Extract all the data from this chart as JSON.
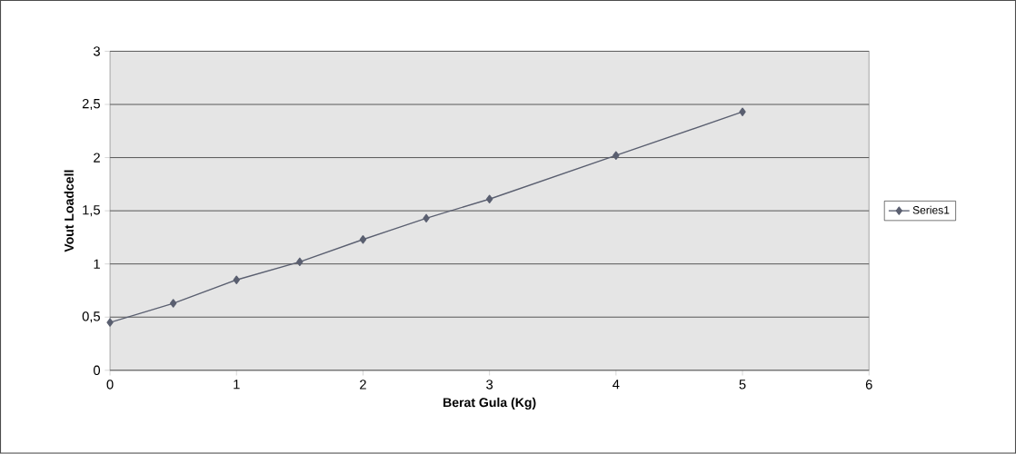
{
  "chart_data": {
    "type": "line",
    "xlabel": "Berat Gula (Kg)",
    "ylabel": "Vout Loadcell",
    "x": [
      0,
      0.5,
      1,
      1.5,
      2,
      2.5,
      3,
      4,
      5
    ],
    "series": [
      {
        "name": "Series1",
        "color": "#5a5f70",
        "values": [
          0.45,
          0.63,
          0.85,
          1.02,
          1.23,
          1.43,
          1.61,
          2.02,
          2.43
        ]
      }
    ],
    "xlim": [
      0,
      6
    ],
    "xticks": [
      0,
      1,
      2,
      3,
      4,
      5,
      6
    ],
    "ylim": [
      0,
      3
    ],
    "yticks": [
      0,
      {
        "value": 0.5,
        "label": "0,5"
      },
      1,
      {
        "value": 1.5,
        "label": "1,5"
      },
      2,
      {
        "value": 2.5,
        "label": "2,5"
      },
      3
    ],
    "grid": "y",
    "legend": "right",
    "marker": "diamond",
    "line_style": "solid"
  }
}
